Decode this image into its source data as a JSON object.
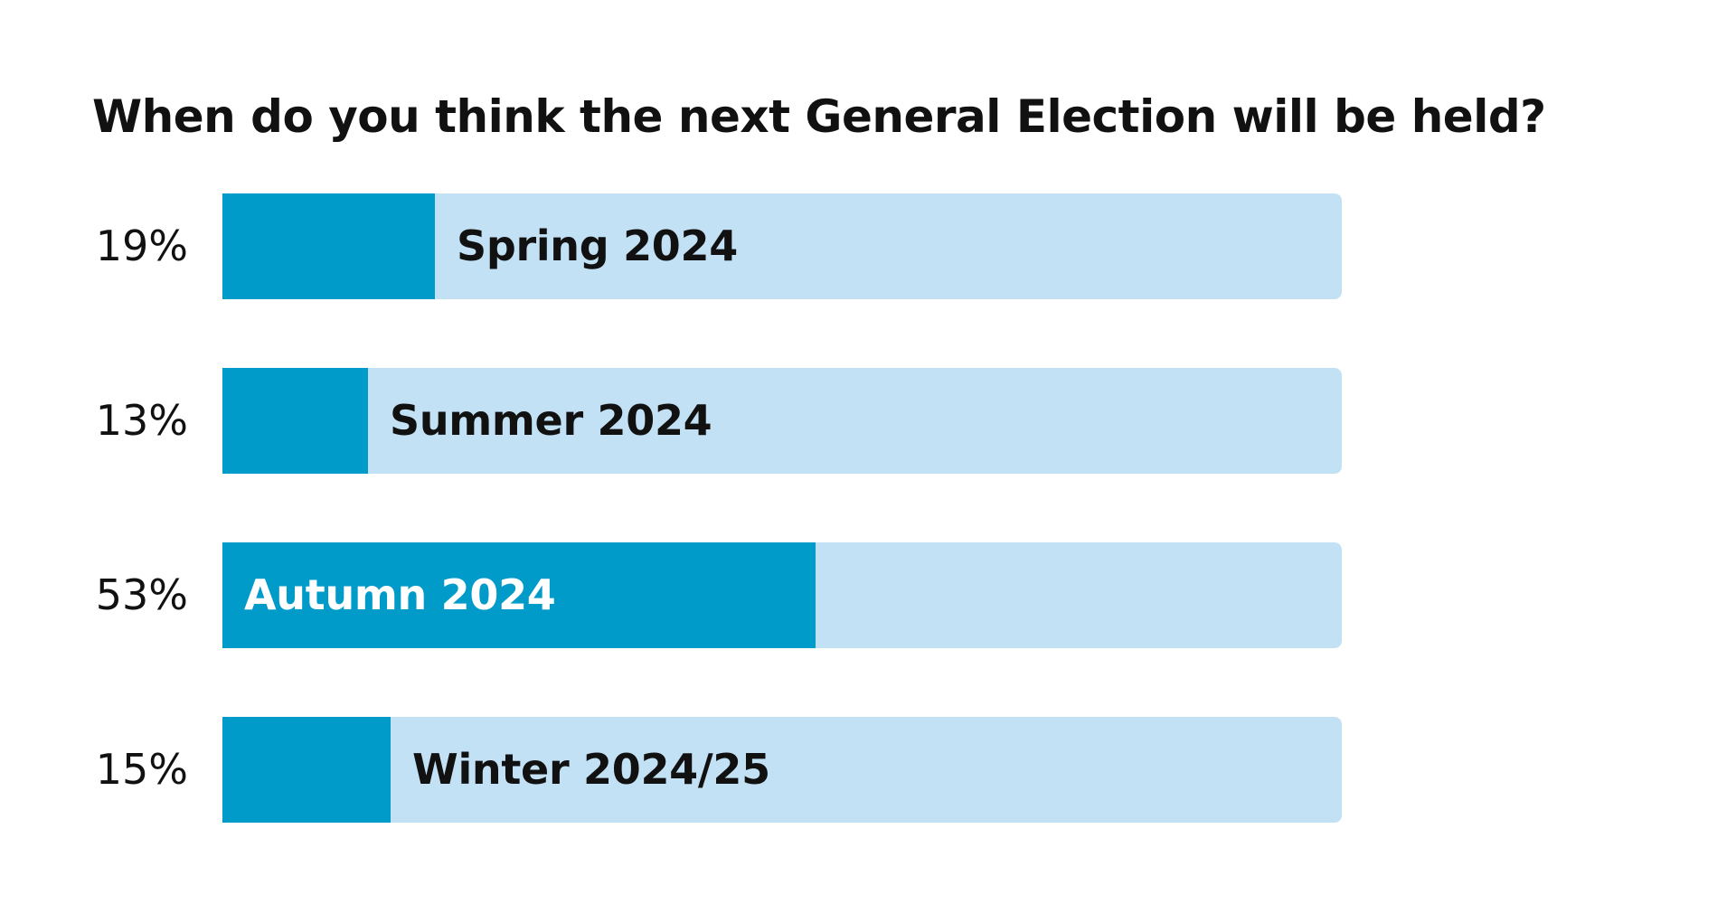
{
  "chart_data": {
    "type": "bar",
    "orientation": "horizontal",
    "title": "When do you think the next General Election will be held?",
    "categories": [
      "Spring 2024",
      "Summer 2024",
      "Autumn 2024",
      "Winter 2024/25"
    ],
    "values": [
      19,
      13,
      53,
      15
    ],
    "value_labels": [
      "19%",
      "13%",
      "53%",
      "15%"
    ],
    "unit": "%",
    "xlim": [
      0,
      100
    ],
    "grid": false,
    "legend": "none",
    "colors": {
      "fill": "#009bc9",
      "track": "#c3e1f5",
      "label_dark": "#111111",
      "label_light": "#ffffff"
    },
    "label_inside_fill_threshold": 40
  }
}
